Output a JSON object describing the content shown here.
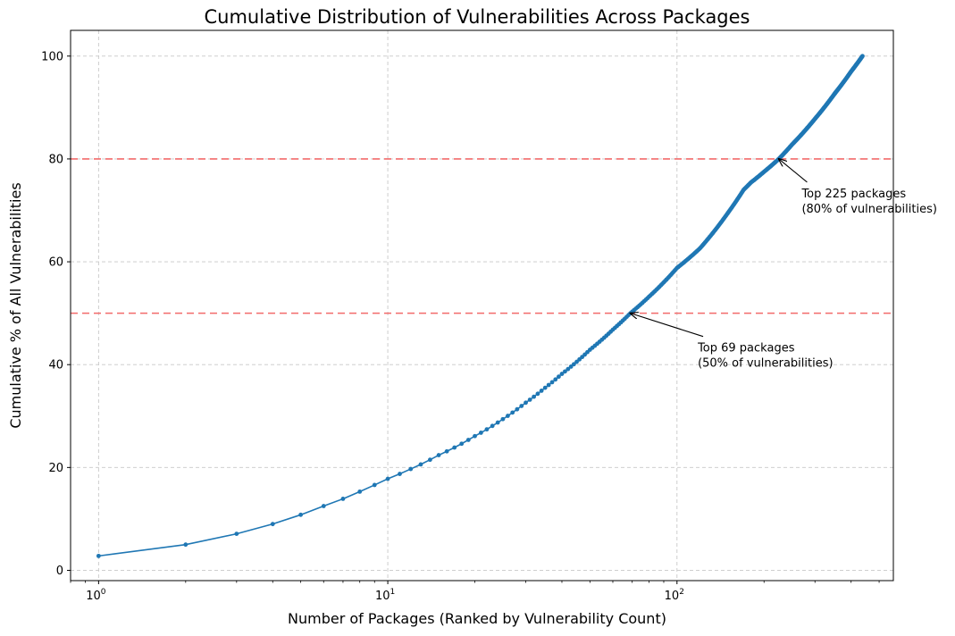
{
  "chart_data": {
    "type": "line",
    "title": "Cumulative Distribution of Vulnerabilities Across Packages",
    "xlabel": "Number of Packages (Ranked by Vulnerability Count)",
    "ylabel": "Cumulative % of All Vulnerabilities",
    "xscale": "log",
    "xlim": [
      0.8,
      560
    ],
    "ylim": [
      -2,
      105
    ],
    "grid": true,
    "legend": "none",
    "xticks": [
      {
        "value": 1,
        "base": "10",
        "exp": "0"
      },
      {
        "value": 10,
        "base": "10",
        "exp": "1"
      },
      {
        "value": 100,
        "base": "10",
        "exp": "2"
      }
    ],
    "yticks": [
      0,
      20,
      40,
      60,
      80,
      100
    ],
    "total_packages": 438,
    "anchor_points": [
      {
        "x": 1,
        "y": 2.8
      },
      {
        "x": 2,
        "y": 5.0
      },
      {
        "x": 3,
        "y": 7.1
      },
      {
        "x": 4,
        "y": 9.0
      },
      {
        "x": 5,
        "y": 10.8
      },
      {
        "x": 6,
        "y": 12.5
      },
      {
        "x": 7,
        "y": 13.9
      },
      {
        "x": 8,
        "y": 15.3
      },
      {
        "x": 9,
        "y": 16.6
      },
      {
        "x": 10,
        "y": 17.8
      },
      {
        "x": 12,
        "y": 19.7
      },
      {
        "x": 15,
        "y": 22.4
      },
      {
        "x": 20,
        "y": 26.1
      },
      {
        "x": 25,
        "y": 29.4
      },
      {
        "x": 30,
        "y": 32.6
      },
      {
        "x": 35,
        "y": 35.5
      },
      {
        "x": 40,
        "y": 38.2
      },
      {
        "x": 50,
        "y": 42.9
      },
      {
        "x": 60,
        "y": 46.8
      },
      {
        "x": 69,
        "y": 50.0
      },
      {
        "x": 80,
        "y": 53.2
      },
      {
        "x": 100,
        "y": 58.8
      },
      {
        "x": 120,
        "y": 62.6
      },
      {
        "x": 150,
        "y": 69.5
      },
      {
        "x": 170,
        "y": 74.0
      },
      {
        "x": 180,
        "y": 75.4
      },
      {
        "x": 200,
        "y": 77.5
      },
      {
        "x": 225,
        "y": 80.0
      },
      {
        "x": 250,
        "y": 82.8
      },
      {
        "x": 300,
        "y": 87.8
      },
      {
        "x": 350,
        "y": 92.6
      },
      {
        "x": 400,
        "y": 97.0
      },
      {
        "x": 438,
        "y": 100
      }
    ],
    "reference_lines": [
      {
        "axis": "y",
        "value": 80,
        "color": "#f26b6b",
        "style": "dashed"
      },
      {
        "axis": "y",
        "value": 50,
        "color": "#f26b6b",
        "style": "dashed"
      }
    ],
    "annotations": [
      {
        "x": 225,
        "y": 80,
        "text_x": 270,
        "text_y": 72,
        "lines": [
          "Top 225 packages",
          "(80% of vulnerabilities)"
        ]
      },
      {
        "x": 69,
        "y": 50,
        "text_x": 118,
        "text_y": 42,
        "lines": [
          "Top 69 packages",
          "(50% of vulnerabilities)"
        ]
      }
    ],
    "series_color": "#1f77b4"
  }
}
